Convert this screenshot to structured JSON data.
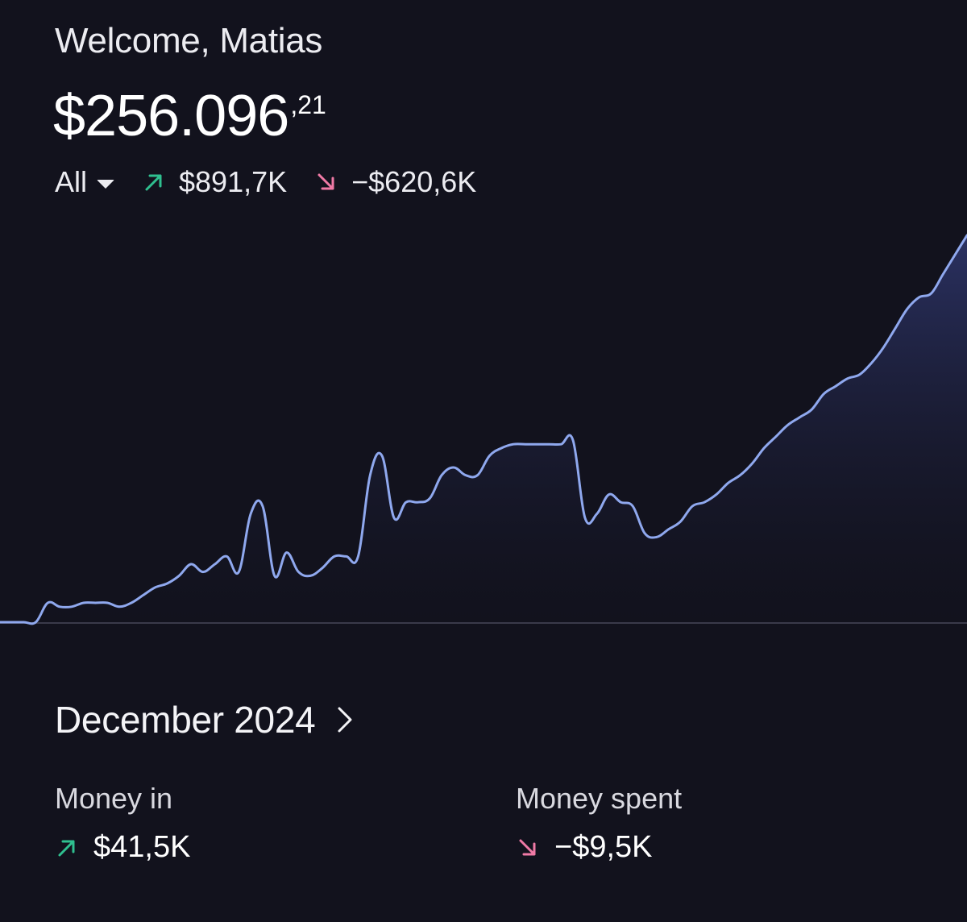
{
  "header": {
    "greeting": "Welcome, Matias",
    "balance_main": "$256.096",
    "balance_cents": ",21"
  },
  "summary": {
    "filter_label": "All",
    "filter_icon": "caret-down-icon",
    "money_in_total": "$891,7K",
    "money_in_icon": "arrow-up-right-icon",
    "money_out_total": "−$620,6K",
    "money_out_icon": "arrow-down-right-icon"
  },
  "colors": {
    "background": "#12121d",
    "line": "#8fa8ee",
    "fill_top": "#2c3366",
    "positive": "#2fbf8f",
    "negative": "#f07aa6",
    "baseline": "#3a3a4a"
  },
  "chart_data": {
    "type": "area",
    "title": "",
    "xlabel": "",
    "ylabel": "",
    "grid": false,
    "legend": "none",
    "ylim": [
      0,
      100
    ],
    "values": [
      0,
      0,
      0,
      0,
      5,
      4,
      4,
      5,
      5,
      5,
      4,
      5,
      7,
      9,
      10,
      12,
      15,
      13,
      15,
      17,
      13,
      28,
      30,
      12,
      18,
      13,
      12,
      14,
      17,
      17,
      17,
      38,
      43,
      27,
      31,
      31,
      32,
      38,
      40,
      38,
      38,
      43,
      45,
      46,
      46,
      46,
      46,
      46,
      47,
      27,
      28,
      33,
      31,
      30,
      23,
      22,
      24,
      26,
      30,
      31,
      33,
      36,
      38,
      41,
      45,
      48,
      51,
      53,
      55,
      59,
      61,
      63,
      64,
      67,
      71,
      76,
      81,
      84,
      85,
      90,
      95,
      100
    ]
  },
  "month": {
    "label": "December 2024",
    "chevron_icon": "chevron-right-icon"
  },
  "money_in": {
    "label": "Money in",
    "value": "$41,5K",
    "icon": "arrow-up-right-icon"
  },
  "money_spent": {
    "label": "Money spent",
    "value": "−$9,5K",
    "icon": "arrow-down-right-icon"
  }
}
